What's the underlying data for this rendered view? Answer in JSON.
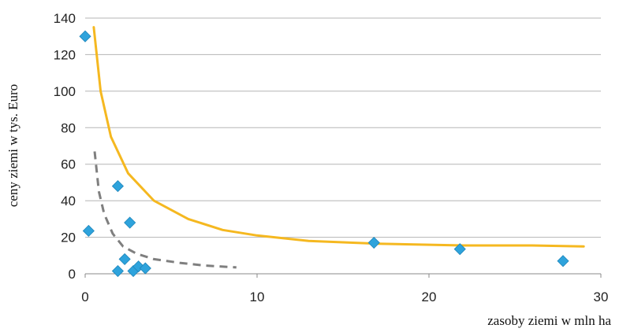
{
  "chart_data": {
    "type": "scatter",
    "xlabel": "zasoby ziemi w mln ha",
    "ylabel": "ceny ziemi w tys. Euro",
    "xlim": [
      0,
      30
    ],
    "ylim": [
      0,
      140
    ],
    "x_ticks": [
      0,
      10,
      20,
      30
    ],
    "y_ticks": [
      0,
      20,
      40,
      60,
      80,
      100,
      120,
      140
    ],
    "grid": "horizontal",
    "series": [
      {
        "kind": "points",
        "marker": "diamond",
        "color": "#2ea3dc",
        "points": [
          {
            "x": 0.0,
            "y": 130
          },
          {
            "x": 0.2,
            "y": 23.5
          },
          {
            "x": 1.9,
            "y": 48
          },
          {
            "x": 2.6,
            "y": 28
          },
          {
            "x": 2.3,
            "y": 8
          },
          {
            "x": 1.9,
            "y": 1.5
          },
          {
            "x": 2.8,
            "y": 1.5
          },
          {
            "x": 3.1,
            "y": 4
          },
          {
            "x": 3.5,
            "y": 3
          },
          {
            "x": 16.8,
            "y": 17
          },
          {
            "x": 21.8,
            "y": 13.5
          },
          {
            "x": 27.8,
            "y": 7
          }
        ]
      },
      {
        "kind": "trendline",
        "style": "solid",
        "color": "#f5b820",
        "points": [
          {
            "x": 0.5,
            "y": 135
          },
          {
            "x": 0.9,
            "y": 100
          },
          {
            "x": 1.5,
            "y": 75
          },
          {
            "x": 2.5,
            "y": 55
          },
          {
            "x": 4,
            "y": 40
          },
          {
            "x": 6,
            "y": 30
          },
          {
            "x": 8,
            "y": 24
          },
          {
            "x": 10,
            "y": 21
          },
          {
            "x": 13,
            "y": 18
          },
          {
            "x": 17,
            "y": 16.5
          },
          {
            "x": 22,
            "y": 15.5
          },
          {
            "x": 26,
            "y": 15.5
          },
          {
            "x": 29,
            "y": 15
          }
        ]
      },
      {
        "kind": "trendline",
        "style": "dashed",
        "color": "#7f7f7f",
        "points": [
          {
            "x": 0.55,
            "y": 67
          },
          {
            "x": 0.8,
            "y": 45
          },
          {
            "x": 1.1,
            "y": 33
          },
          {
            "x": 1.6,
            "y": 22
          },
          {
            "x": 2.2,
            "y": 15
          },
          {
            "x": 3.0,
            "y": 11
          },
          {
            "x": 4.0,
            "y": 8
          },
          {
            "x": 5.5,
            "y": 6
          },
          {
            "x": 7.0,
            "y": 4.5
          },
          {
            "x": 8.8,
            "y": 3.5
          }
        ]
      }
    ]
  }
}
